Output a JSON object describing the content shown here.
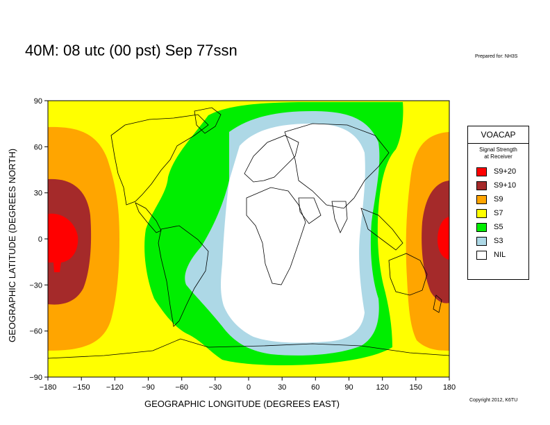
{
  "title": "40M:  08 utc (00 pst) Sep 77ssn",
  "prepared_by": "Prepared for: NH3S",
  "copyright": "Copyright 2012, K6TU",
  "xaxis_label": "GEOGRAPHIC LONGITUDE (DEGREES EAST)",
  "yaxis_label": "GEOGRAPHIC LATITUDE (DEGREES NORTH)",
  "x_ticks": [
    "−180",
    "−150",
    "−120",
    "−90",
    "−60",
    "−30",
    "0",
    "30",
    "60",
    "90",
    "120",
    "150",
    "180"
  ],
  "y_ticks": [
    "90",
    "60",
    "30",
    "0",
    "−30",
    "−60",
    "−90"
  ],
  "legend": {
    "title": "VOACAP",
    "subtitle_line1": "Signal Strength",
    "subtitle_line2": "at Receiver",
    "items": [
      {
        "label": "S9+20",
        "color": "#ff0000"
      },
      {
        "label": "S9+10",
        "color": "#a52a2a"
      },
      {
        "label": "S9",
        "color": "#ffa500"
      },
      {
        "label": "S7",
        "color": "#ffff00"
      },
      {
        "label": "S5",
        "color": "#00ee00"
      },
      {
        "label": "S3",
        "color": "#add8e6"
      },
      {
        "label": "NIL",
        "color": "#ffffff"
      }
    ]
  },
  "map": {
    "lon_range": [
      -180,
      180
    ],
    "lat_range": [
      -90,
      90
    ],
    "background_level": "S7"
  }
}
